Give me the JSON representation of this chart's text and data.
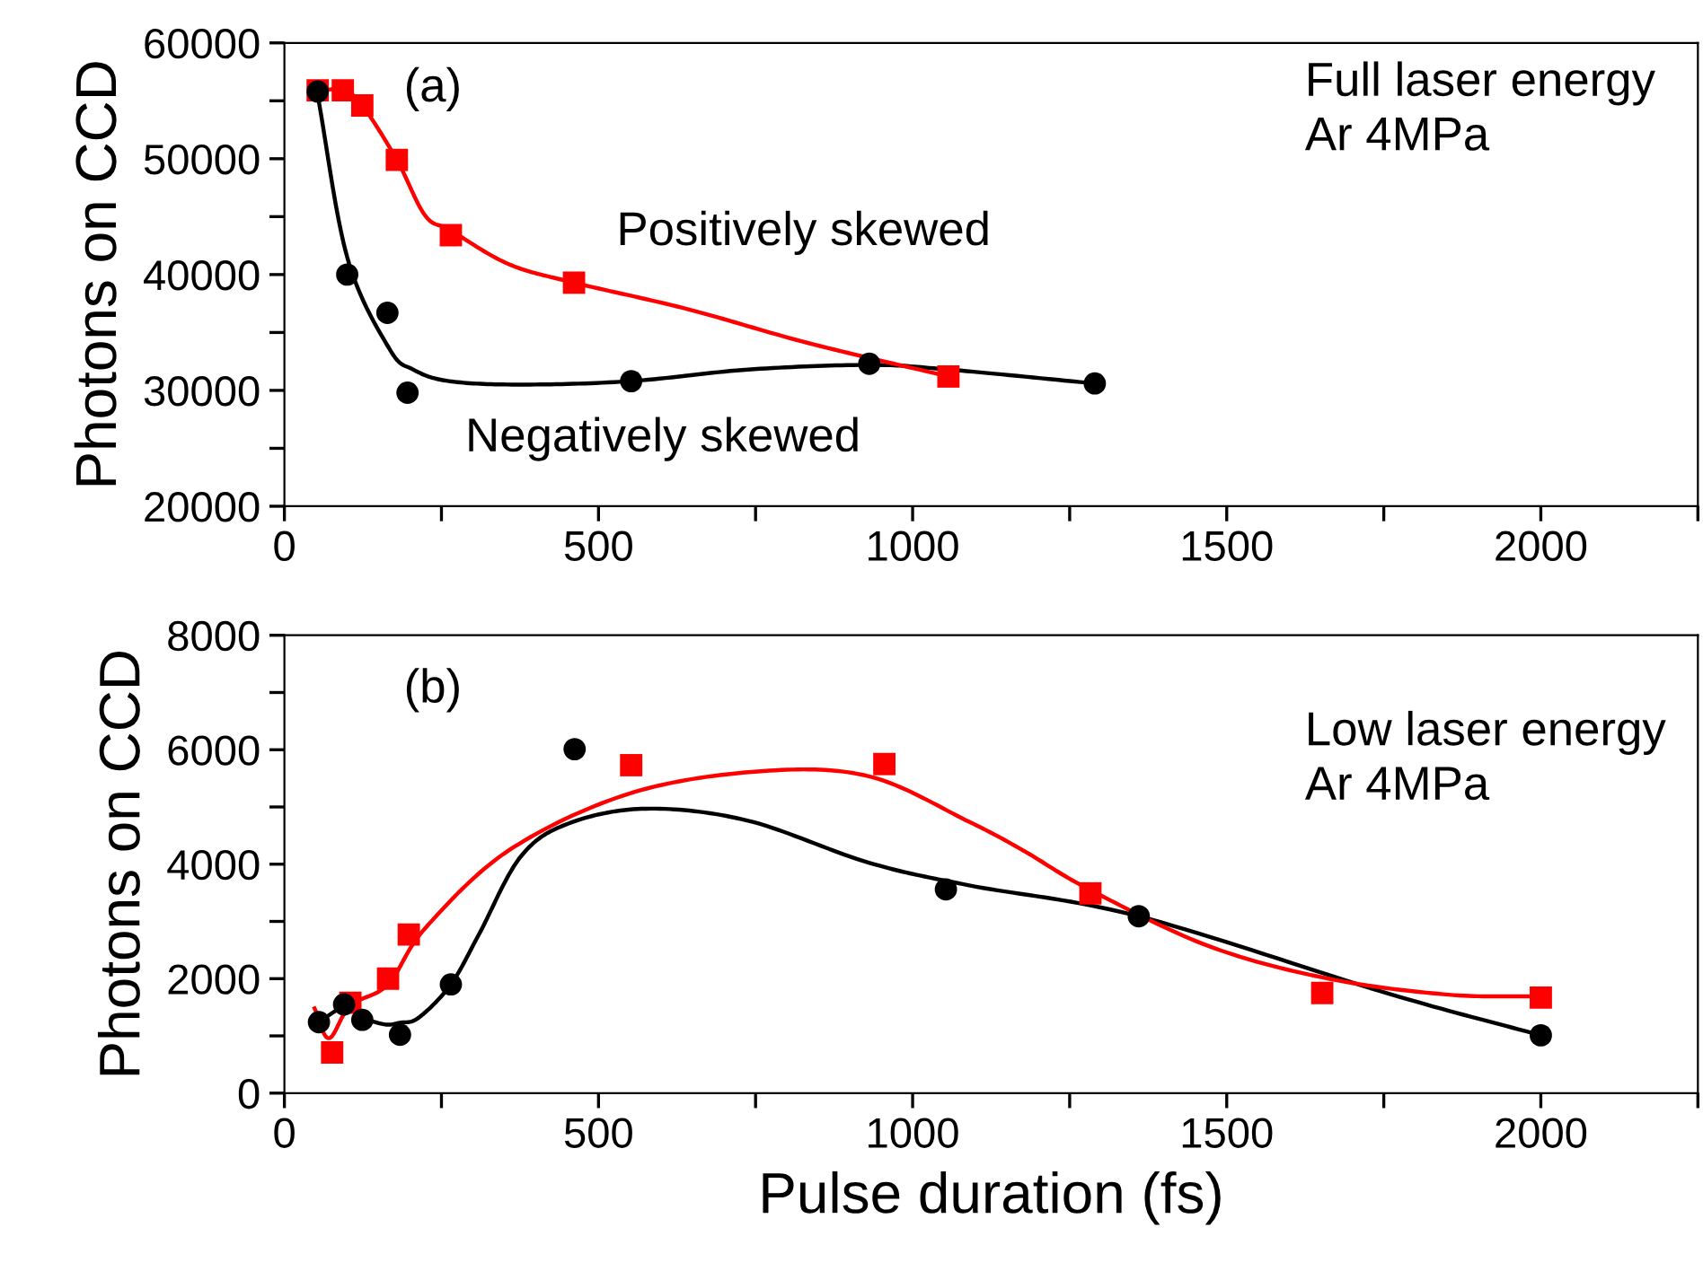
{
  "chart_data": [
    {
      "type": "scatter",
      "ylabel": "Photons on CCD",
      "xlim": [
        0,
        2250
      ],
      "ylim": [
        20000,
        60000
      ],
      "xticks": [
        0,
        {
          "value": 250,
          "label": null
        },
        500,
        {
          "value": 750,
          "label": null
        },
        1000,
        {
          "value": 1250,
          "label": null
        },
        1500,
        {
          "value": 1750,
          "label": null
        },
        2000,
        {
          "value": 2250,
          "label": null
        }
      ],
      "yticks": [
        20000,
        {
          "value": 25000,
          "label": null
        },
        30000,
        {
          "value": 35000,
          "label": null
        },
        40000,
        {
          "value": 45000,
          "label": null
        },
        50000,
        {
          "value": 55000,
          "label": null
        },
        60000
      ],
      "grid": false,
      "legend": false,
      "annotations": [
        "(a)",
        "Full laser energy\nAr 4MPa",
        "Positively skewed",
        "Negatively skewed"
      ],
      "series": [
        {
          "type": "line",
          "color": "#000000",
          "marker": "none",
          "line_style": "solid",
          "x": [
            52,
            100,
            167,
            205,
            262,
            376,
            552,
            738,
            931,
            1057,
            1290
          ],
          "values": [
            55800,
            41500,
            33600,
            31800,
            30800,
            30500,
            30800,
            31800,
            32200,
            31800,
            30600
          ]
        },
        {
          "type": "line",
          "color": "#ff0000",
          "marker": "none",
          "line_style": "solid",
          "x": [
            52,
            93,
            124,
            179,
            224,
            265,
            357,
            461,
            643,
            833,
            1057
          ],
          "values": [
            55900,
            55900,
            54600,
            49900,
            45100,
            43800,
            40900,
            39300,
            37000,
            34100,
            31200
          ]
        },
        {
          "color": "#ff0000",
          "marker": "square",
          "x": [
            53,
            93,
            124,
            179,
            265,
            461,
            1057
          ],
          "values": [
            55900,
            55900,
            54600,
            49900,
            43400,
            39300,
            31200
          ]
        },
        {
          "color": "#000000",
          "marker": "circle",
          "x": [
            53,
            100,
            164,
            196,
            552,
            931,
            1290
          ],
          "values": [
            55800,
            40000,
            36700,
            29800,
            30800,
            32300,
            30600
          ]
        }
      ]
    },
    {
      "type": "scatter",
      "xlabel": "Pulse duration (fs)",
      "ylabel": "Photons on CCD",
      "xlim": [
        0,
        2250
      ],
      "ylim": [
        0,
        8000
      ],
      "xticks": [
        0,
        {
          "value": 250,
          "label": null
        },
        500,
        {
          "value": 750,
          "label": null
        },
        1000,
        {
          "value": 1250,
          "label": null
        },
        1500,
        {
          "value": 1750,
          "label": null
        },
        2000,
        {
          "value": 2250,
          "label": null
        }
      ],
      "yticks": [
        0,
        {
          "value": 1000,
          "label": null
        },
        2000,
        {
          "value": 3000,
          "label": null
        },
        4000,
        {
          "value": 5000,
          "label": null
        },
        6000,
        {
          "value": 7000,
          "label": null
        },
        8000
      ],
      "grid": false,
      "legend": false,
      "annotations": [
        "(b)",
        "Low laser energy\nAr 4MPa"
      ],
      "series": [
        {
          "type": "line",
          "color": "#000000",
          "marker": "none",
          "line_style": "solid",
          "x": [
            55,
            95,
            124,
            160,
            184,
            214,
            265,
            310,
            376,
            452,
            576,
            738,
            929,
            1090,
            1360,
            1757,
            2000
          ],
          "values": [
            1240,
            1500,
            1320,
            1200,
            1230,
            1320,
            1900,
            2780,
            4130,
            4710,
            4970,
            4760,
            4030,
            3630,
            3090,
            1740,
            1010
          ]
        },
        {
          "type": "line",
          "color": "#ff0000",
          "marker": "none",
          "line_style": "solid",
          "x": [
            48,
            71,
            105,
            165,
            224,
            357,
            548,
            753,
            929,
            1090,
            1176,
            1281,
            1471,
            1662,
            1853,
            2000
          ],
          "values": [
            1480,
            960,
            1530,
            1900,
            2880,
            4240,
            5230,
            5620,
            5540,
            4740,
            4240,
            3560,
            2570,
            2000,
            1720,
            1690
          ]
        },
        {
          "color": "#ff0000",
          "marker": "square",
          "x": [
            76,
            105,
            165,
            198,
            552,
            955,
            1283,
            1652,
            2000
          ],
          "values": [
            710,
            1580,
            2000,
            2770,
            5730,
            5750,
            3490,
            1750,
            1670
          ]
        },
        {
          "color": "#000000",
          "marker": "circle",
          "x": [
            55,
            95,
            124,
            184,
            265,
            462,
            1053,
            1360,
            2000
          ],
          "values": [
            1240,
            1550,
            1280,
            1020,
            1900,
            6010,
            3560,
            3090,
            1010
          ]
        }
      ]
    }
  ]
}
